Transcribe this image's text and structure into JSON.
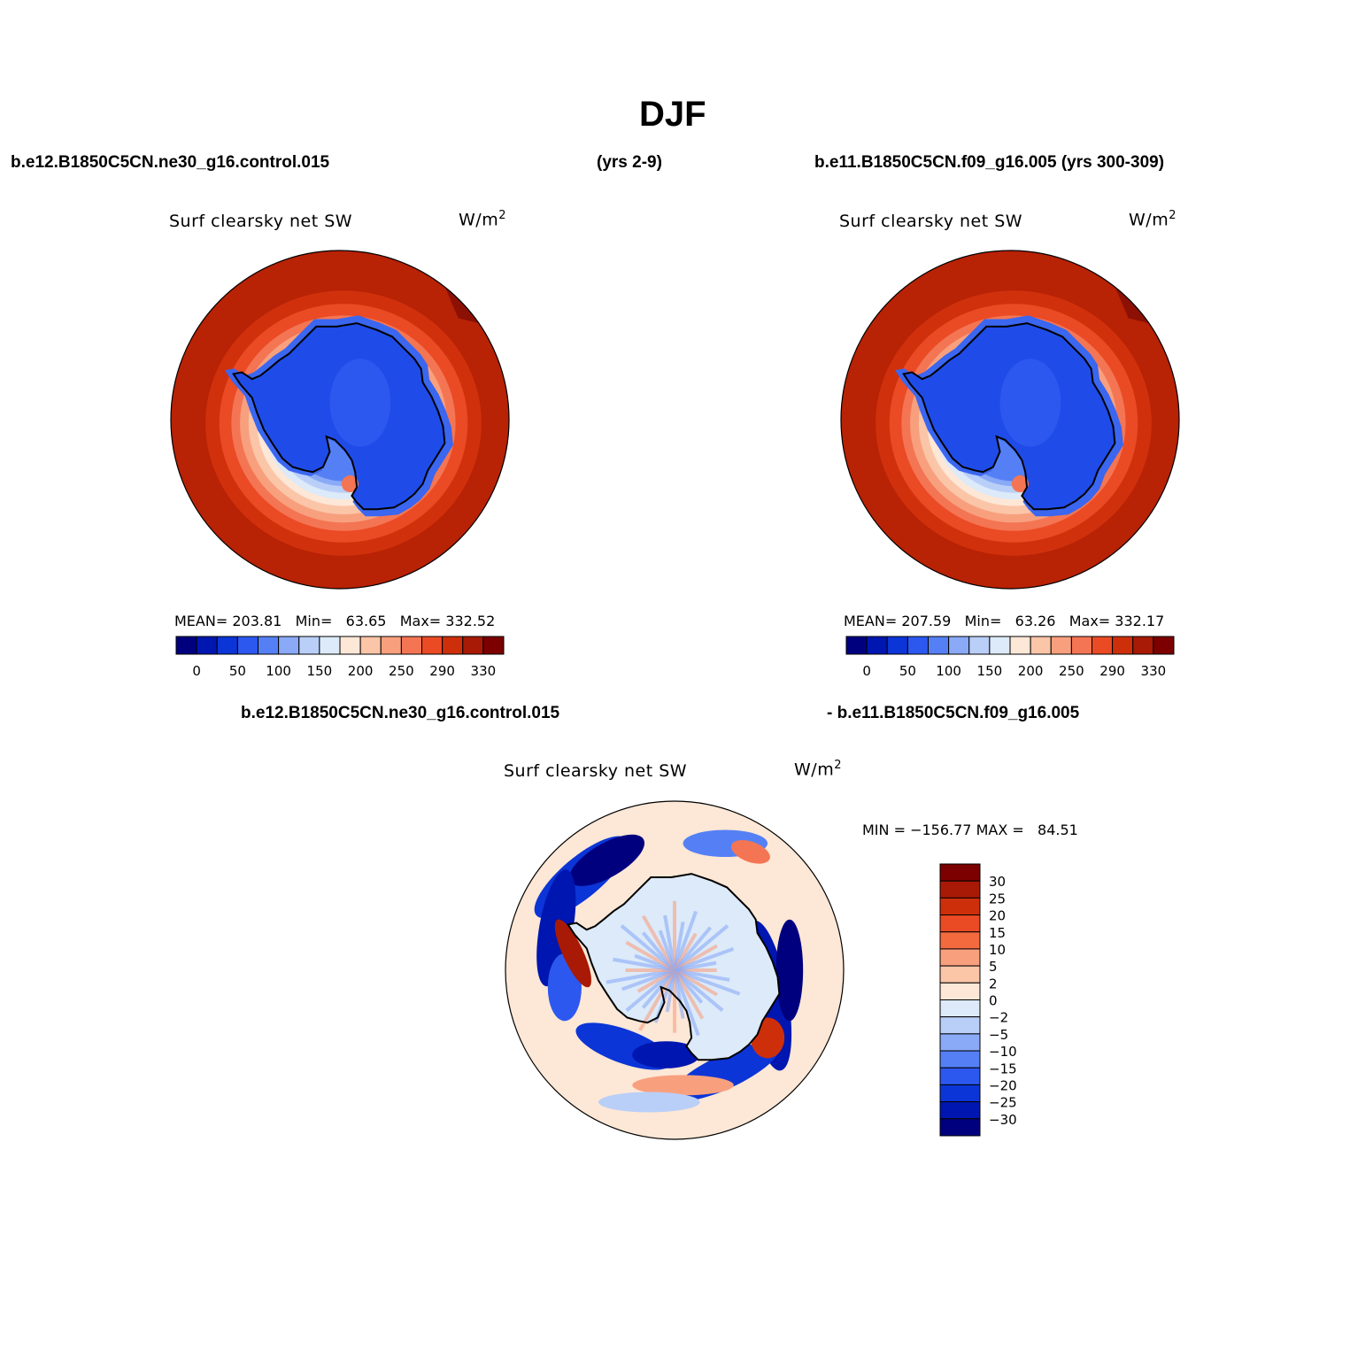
{
  "page": {
    "title": "DJF"
  },
  "headers": {
    "top_left": "b.e12.B1850C5CN.ne30_g16.control.015",
    "top_center": "(yrs 2-9)",
    "top_right": "b.e11.B1850C5CN.f09_g16.005 (yrs 300-309)",
    "bottom_left": "b.e12.B1850C5CN.ne30_g16.control.015",
    "bottom_right": "- b.e11.B1850C5CN.f09_g16.005"
  },
  "chart_data": [
    {
      "type": "heatmap",
      "projection": "south polar stereographic",
      "variable": "Surf clearsky net SW",
      "units": "W/m",
      "units_sup": "2",
      "stats": {
        "mean_label": "MEAN=",
        "mean": "203.81",
        "min_label": "Min=",
        "min": "63.65",
        "max_label": "Max=",
        "max": "332.52"
      },
      "colorbar": {
        "orientation": "horizontal",
        "tick_labels": [
          "0",
          "50",
          "100",
          "150",
          "200",
          "250",
          "290",
          "330"
        ],
        "colors": [
          "#00007f",
          "#0016b0",
          "#0b35d6",
          "#2c58f0",
          "#5580f5",
          "#8aaaf7",
          "#b9cff8",
          "#dceaf9",
          "#fde7d6",
          "#fbc5a8",
          "#f8a07e",
          "#f47553",
          "#ea4a24",
          "#ce2f0b",
          "#a81a05",
          "#7c0000"
        ]
      }
    },
    {
      "type": "heatmap",
      "projection": "south polar stereographic",
      "variable": "Surf clearsky net SW",
      "units": "W/m",
      "units_sup": "2",
      "stats": {
        "mean_label": "MEAN=",
        "mean": "207.59",
        "min_label": "Min=",
        "min": "63.26",
        "max_label": "Max=",
        "max": "332.17"
      },
      "colorbar": {
        "orientation": "horizontal",
        "tick_labels": [
          "0",
          "50",
          "100",
          "150",
          "200",
          "250",
          "290",
          "330"
        ],
        "colors": [
          "#00007f",
          "#0016b0",
          "#0b35d6",
          "#2c58f0",
          "#5580f5",
          "#8aaaf7",
          "#b9cff8",
          "#dceaf9",
          "#fde7d6",
          "#fbc5a8",
          "#f8a07e",
          "#f47553",
          "#ea4a24",
          "#ce2f0b",
          "#a81a05",
          "#7c0000"
        ]
      }
    },
    {
      "type": "heatmap",
      "projection": "south polar stereographic",
      "variable": "Surf clearsky net SW",
      "units": "W/m",
      "units_sup": "2",
      "stats": {
        "min_label": "MIN =",
        "min": "−156.77",
        "max_label": "MAX =",
        "max": "84.51"
      },
      "colorbar": {
        "orientation": "vertical",
        "tick_labels": [
          "30",
          "25",
          "20",
          "15",
          "10",
          "5",
          "2",
          "0",
          "−2",
          "−5",
          "−10",
          "−15",
          "−20",
          "−25",
          "−30"
        ],
        "colors": [
          "#7c0000",
          "#a81a05",
          "#ce2f0b",
          "#ea4a24",
          "#f46a3f",
          "#f8a07e",
          "#fbc5a8",
          "#fde7d6",
          "#dceaf9",
          "#b9cff8",
          "#8aaaf7",
          "#5580f5",
          "#2c58f0",
          "#0b35d6",
          "#0016b0",
          "#00007f"
        ]
      }
    }
  ]
}
